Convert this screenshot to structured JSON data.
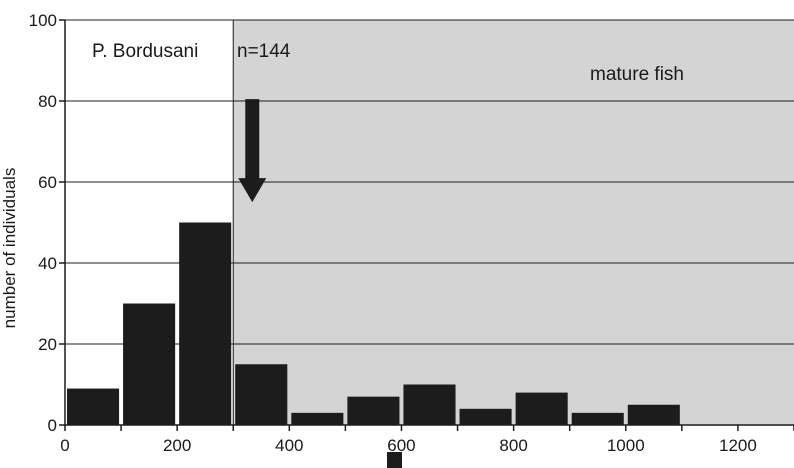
{
  "chart_data": {
    "type": "bar",
    "title": "",
    "xlabel": "",
    "ylabel": "number of individuals",
    "xlim": [
      0,
      1300
    ],
    "ylim": [
      0,
      100
    ],
    "bin_width": 100,
    "grid": "horizontal",
    "bins": [
      {
        "start": 0,
        "value": 9
      },
      {
        "start": 100,
        "value": 30
      },
      {
        "start": 200,
        "value": 50
      },
      {
        "start": 300,
        "value": 15
      },
      {
        "start": 400,
        "value": 3
      },
      {
        "start": 500,
        "value": 7
      },
      {
        "start": 600,
        "value": 10
      },
      {
        "start": 700,
        "value": 4
      },
      {
        "start": 800,
        "value": 8
      },
      {
        "start": 900,
        "value": 3
      },
      {
        "start": 1000,
        "value": 5
      },
      {
        "start": 1100,
        "value": 0
      },
      {
        "start": 1200,
        "value": 0
      }
    ],
    "x_ticks": [
      "0",
      "200",
      "400",
      "600",
      "800",
      "1000",
      "1200"
    ],
    "x_tick_values": [
      0,
      200,
      400,
      600,
      800,
      1000,
      1200
    ],
    "y_ticks": [
      "0",
      "20",
      "40",
      "60",
      "80",
      "100"
    ],
    "y_tick_values": [
      0,
      20,
      40,
      60,
      80,
      100
    ],
    "shaded_region": {
      "from": 300,
      "to": 1300,
      "label": "mature fish",
      "color": "#d4d4d4"
    },
    "annotations": {
      "series_label": "P. Bordusani",
      "sample_size": "n=144",
      "arrow_x": 350,
      "arrow_from_y": 78,
      "arrow_to_y": 57
    },
    "colors": {
      "bar": "#1c1c1c",
      "grid": "#1c1c1c",
      "shading": "#d4d4d4"
    }
  }
}
